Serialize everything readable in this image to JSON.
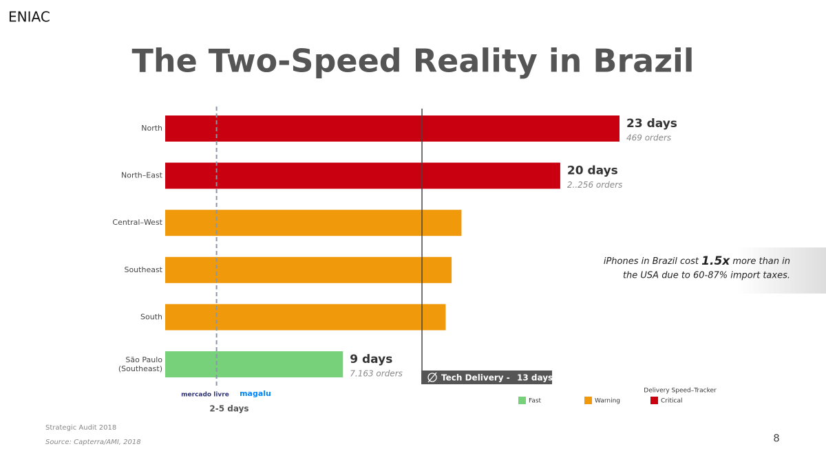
{
  "brand": "ENIAC",
  "chart_data": {
    "type": "bar",
    "orientation": "horizontal",
    "title": "The Two-Speed Reality in Brazil",
    "categories": [
      "North",
      "North–East",
      "Central–West",
      "Southeast",
      "South",
      "São Paulo (Southeast)"
    ],
    "values": [
      23,
      20,
      15,
      14.5,
      14.2,
      9
    ],
    "value_labels": [
      "23 days",
      "20 days",
      null,
      null,
      null,
      "9 days"
    ],
    "order_labels": [
      "469 orders",
      "2..256 orders",
      null,
      null,
      null,
      "7.163 orders"
    ],
    "colors": [
      "#c8000f",
      "#c8000f",
      "#f0990a",
      "#f0990a",
      "#f0990a",
      "#77d17a"
    ],
    "xlim": [
      0,
      23
    ],
    "reference_line": {
      "value": 13,
      "label": "Tech Delivery -",
      "value_label": "13 days"
    },
    "marketplace_line": {
      "value": 2.6,
      "logos": [
        "mercado livre",
        "magalu"
      ],
      "label": "2-5 days"
    },
    "legend": {
      "title": "Delivery Speed–Tracker",
      "items": [
        {
          "name": "Fast",
          "color": "#77d17a"
        },
        {
          "name": "Warning",
          "color": "#f0990a"
        },
        {
          "name": "Critical",
          "color": "#c8000f"
        }
      ]
    }
  },
  "note": [
    "iPhones in Brazil cost ",
    "1.5x",
    " more than in",
    "the USA due to 60-87% import taxes."
  ],
  "footer": {
    "label": "Strategic Audit 2018",
    "source": "Source: Capterra/AMI, 2018",
    "page": "8"
  }
}
